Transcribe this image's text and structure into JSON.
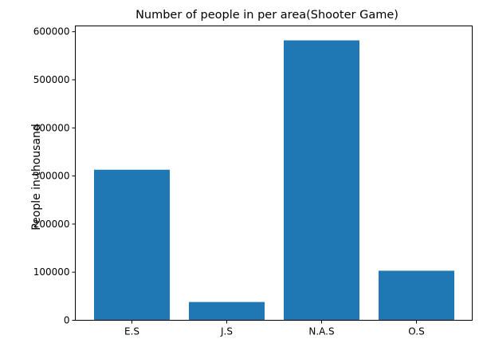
{
  "chart_data": {
    "type": "bar",
    "title": "Number of people in per area(Shooter Game)",
    "xlabel": "",
    "ylabel": "People in thousand",
    "categories": [
      "E.S",
      "J.S",
      "N.A.S",
      "O.S"
    ],
    "values": [
      313000,
      38000,
      582000,
      103000
    ],
    "ylim": [
      0,
      612000
    ],
    "yticks": [
      0,
      100000,
      200000,
      300000,
      400000,
      500000,
      600000
    ],
    "ytick_labels": [
      "0",
      "100000",
      "200000",
      "300000",
      "400000",
      "500000",
      "600000"
    ],
    "bar_color": "#1f77b4",
    "grid": false,
    "legend": "none"
  }
}
